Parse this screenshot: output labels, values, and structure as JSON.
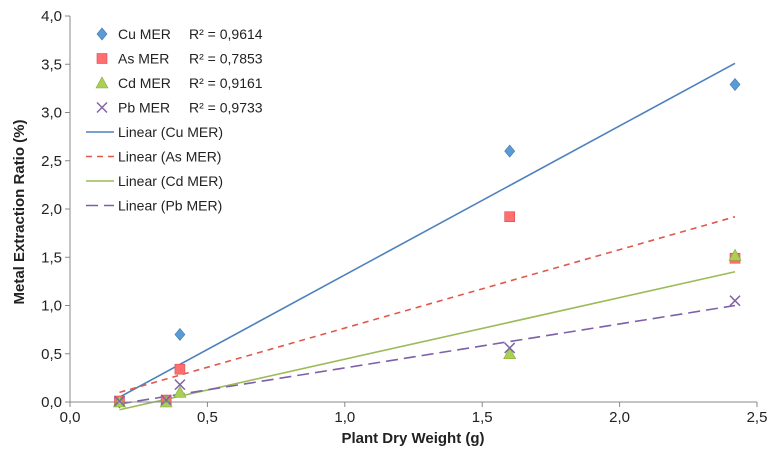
{
  "chart_data": {
    "type": "scatter",
    "title": "",
    "xlabel": "Plant Dry Weight (g)",
    "ylabel": "Metal Extraction Ratio (%)",
    "xlim": [
      0,
      2.5
    ],
    "ylim": [
      0,
      4
    ],
    "x_ticks": [
      "0,0",
      "0,5",
      "1,0",
      "1,5",
      "2,0",
      "2,5"
    ],
    "y_ticks": [
      "0,0",
      "0,5",
      "1,0",
      "1,5",
      "2,0",
      "2,5",
      "3,0",
      "3,5",
      "4,0"
    ],
    "grid": false,
    "legend_position": "top-left",
    "series": [
      {
        "name": "Cu MER",
        "r2_label": "R² = 0,9614",
        "marker": "diamond",
        "color": "#5b9bd5",
        "x": [
          0.18,
          0.35,
          0.4,
          1.6,
          2.42
        ],
        "y": [
          0.0,
          0.01,
          0.7,
          2.6,
          3.29
        ]
      },
      {
        "name": "As MER",
        "r2_label": "R² = 0,7853",
        "marker": "square",
        "color": "#ff6f6f",
        "x": [
          0.18,
          0.35,
          0.4,
          1.6,
          2.42
        ],
        "y": [
          0.01,
          0.02,
          0.34,
          1.92,
          1.49
        ]
      },
      {
        "name": "Cd MER",
        "r2_label": "R² = 0,9161",
        "marker": "triangle",
        "color": "#a9cf54",
        "x": [
          0.18,
          0.35,
          0.4,
          1.6,
          2.42
        ],
        "y": [
          0.0,
          0.0,
          0.1,
          0.5,
          1.52
        ]
      },
      {
        "name": "Pb MER",
        "r2_label": "R² = 0,9733",
        "marker": "x",
        "color": "#8064a2",
        "x": [
          0.18,
          0.35,
          0.4,
          1.6,
          2.42
        ],
        "y": [
          0.01,
          0.02,
          0.18,
          0.56,
          1.05
        ]
      }
    ],
    "trendlines": [
      {
        "name": "Linear (Cu MER)",
        "color": "#4f81bd",
        "dash": "solid",
        "x": [
          0.18,
          2.42
        ],
        "y": [
          0.05,
          3.51
        ]
      },
      {
        "name": "Linear (As MER)",
        "color": "#e0584c",
        "dash": "dashed",
        "x": [
          0.18,
          2.42
        ],
        "y": [
          0.1,
          1.92
        ]
      },
      {
        "name": "Linear (Cd MER)",
        "color": "#9bbb59",
        "dash": "solid",
        "x": [
          0.18,
          2.42
        ],
        "y": [
          -0.08,
          1.35
        ]
      },
      {
        "name": "Linear (Pb MER)",
        "color": "#7e5fa8",
        "dash": "longdash",
        "x": [
          0.18,
          2.42
        ],
        "y": [
          -0.02,
          1.0
        ]
      }
    ]
  }
}
